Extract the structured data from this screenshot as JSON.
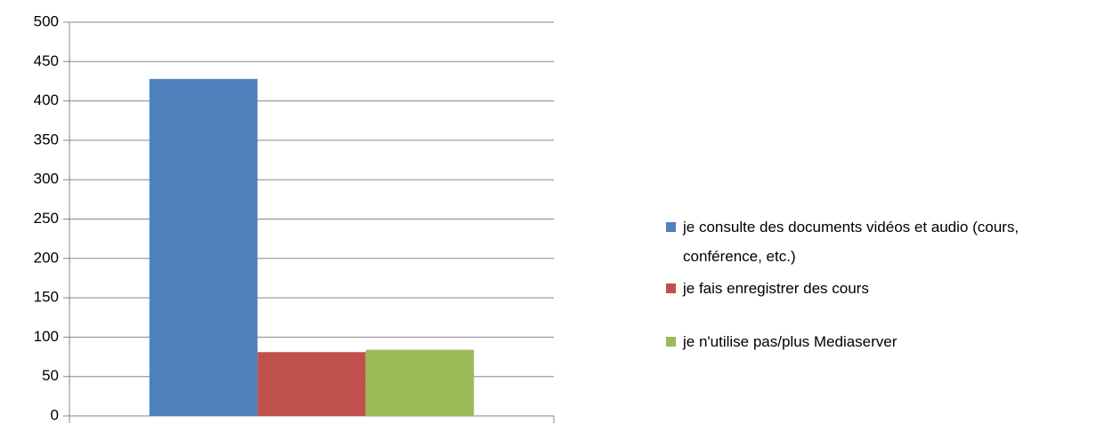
{
  "chart_data": {
    "type": "bar",
    "categories": [
      null
    ],
    "series": [
      {
        "name": "je consulte des documents vidéos et audio (cours, conférence, etc.)",
        "color": "#4f81bd",
        "values": [
          428
        ]
      },
      {
        "name": "je fais enregistrer des cours",
        "color": "#c0504d",
        "values": [
          81
        ]
      },
      {
        "name": "je n'utilise pas/plus Mediaserver",
        "color": "#9bbb59",
        "values": [
          84
        ]
      }
    ],
    "ylim": [
      0,
      500
    ],
    "yticks": [
      0,
      50,
      100,
      150,
      200,
      250,
      300,
      350,
      400,
      450,
      500
    ],
    "grid": true,
    "legend": "right"
  }
}
